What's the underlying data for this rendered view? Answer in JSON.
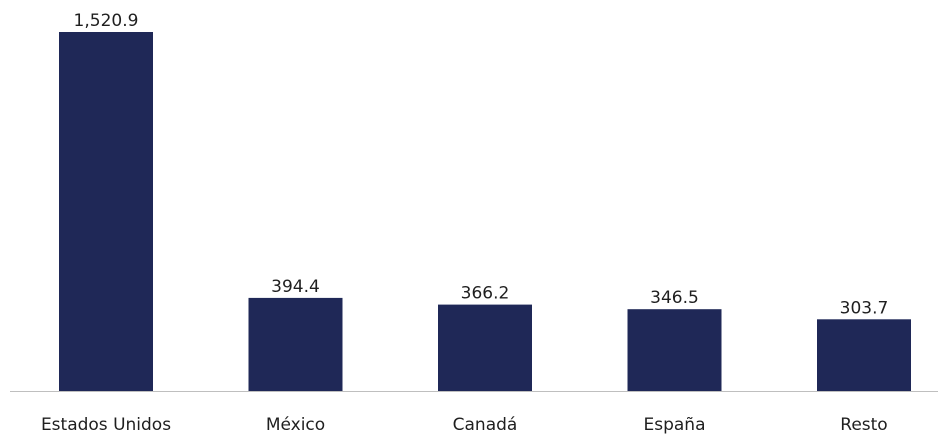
{
  "chart_data": {
    "type": "bar",
    "title": "",
    "xlabel": "",
    "ylabel": "",
    "categories": [
      "Estados Unidos",
      "México",
      "Canadá",
      "España",
      "Resto"
    ],
    "values": [
      1520.9,
      394.4,
      366.2,
      346.5,
      303.7
    ],
    "value_labels": [
      "1,520.9",
      "394.4",
      "366.2",
      "346.5",
      "303.7"
    ],
    "ylim": [
      0,
      1520.9
    ],
    "grid": false,
    "legend": "none",
    "bar_color": "#1f2857",
    "axis_color": "#bfbfbf"
  }
}
